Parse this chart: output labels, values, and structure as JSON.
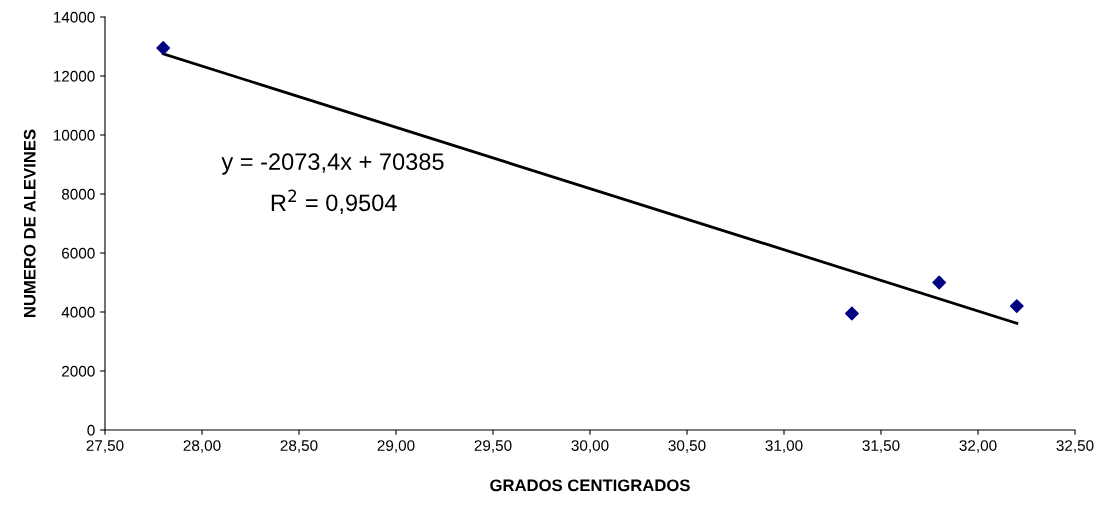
{
  "chart_data": {
    "type": "scatter",
    "xlabel": "GRADOS CENTIGRADOS",
    "ylabel": "NUMERO DE ALEVINES",
    "xlim": [
      27.5,
      32.5
    ],
    "xticks": [
      {
        "value": 27.5,
        "label": "27,50"
      },
      {
        "value": 28,
        "label": "28,00"
      },
      {
        "value": 28.5,
        "label": "28,50"
      },
      {
        "value": 29,
        "label": "29,00"
      },
      {
        "value": 29.5,
        "label": "29,50"
      },
      {
        "value": 30,
        "label": "30,00"
      },
      {
        "value": 30.5,
        "label": "30,50"
      },
      {
        "value": 31,
        "label": "31,00"
      },
      {
        "value": 31.5,
        "label": "31,50"
      },
      {
        "value": 32,
        "label": "32,00"
      },
      {
        "value": 32.5,
        "label": "32,50"
      }
    ],
    "ylim": [
      0,
      14000
    ],
    "yticks": [
      0,
      2000,
      4000,
      6000,
      8000,
      10000,
      12000,
      14000
    ],
    "grid": false,
    "legend": false,
    "series": [
      {
        "marker": "diamond",
        "color": "#000080",
        "x": [
          27.8,
          31.35,
          31.8,
          32.2
        ],
        "values": [
          12950,
          3950,
          5000,
          4200
        ]
      },
      {
        "type": "line",
        "marker": "none",
        "color": "#000000",
        "x": [
          27.8,
          32.2
        ],
        "values": [
          12750,
          3620
        ]
      }
    ],
    "annotations": [
      "y = -2073,4x + 70385",
      "R$^{2}$ = 0,9504"
    ]
  }
}
